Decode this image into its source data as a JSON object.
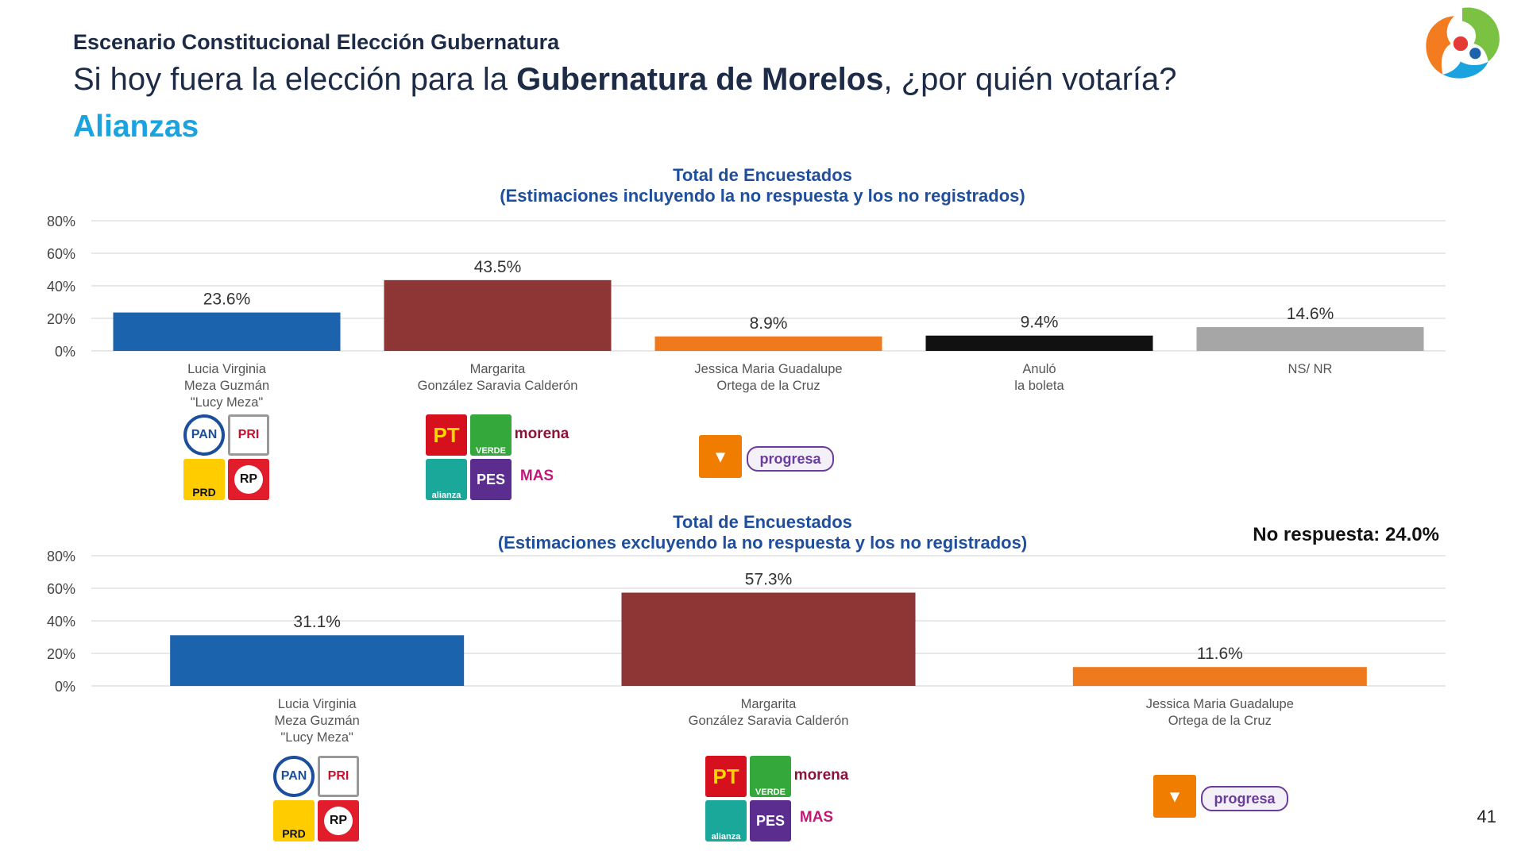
{
  "header": {
    "kicker": "Escenario Constitucional Elección Gubernatura",
    "question_before": "Si hoy fuera la elección para la ",
    "question_bold": "Gubernatura de Morelos",
    "question_after": ", ¿por quién votaría?",
    "section": "Alianzas"
  },
  "page_number": "41",
  "no_response_note": "No respuesta: 24.0%",
  "logos": {
    "pan": "PAN",
    "pri": "PRI",
    "prd": "PRD",
    "rp": "RP",
    "pt": "PT",
    "verde": "VERDE",
    "morena": "morena",
    "alianza": "alianza",
    "pes": "PES",
    "mas": "MAS",
    "progresa": "progresa"
  },
  "chart_data": [
    {
      "type": "bar",
      "title": "Total de Encuestados",
      "subtitle": "(Estimaciones incluyendo la no respuesta y los no registrados)",
      "categories": [
        [
          "Lucia Virginia",
          "Meza Guzmán",
          "\"Lucy Meza\""
        ],
        [
          "Margarita",
          "González Saravia Calderón"
        ],
        [
          "Jessica Maria Guadalupe",
          "Ortega de la Cruz"
        ],
        [
          "Anuló",
          "la boleta"
        ],
        [
          "NS/ NR"
        ]
      ],
      "values": [
        23.6,
        43.5,
        8.9,
        9.4,
        14.6
      ],
      "data_labels": [
        "23.6%",
        "43.5%",
        "8.9%",
        "9.4%",
        "14.6%"
      ],
      "colors": [
        "#1b63ad",
        "#8e3535",
        "#ef7a1d",
        "#111111",
        "#a6a6a6"
      ],
      "y_ticks": [
        "0%",
        "20%",
        "40%",
        "60%",
        "80%"
      ],
      "ylim": [
        0,
        80
      ],
      "grid": true
    },
    {
      "type": "bar",
      "title": "Total de Encuestados",
      "subtitle": "(Estimaciones excluyendo la no respuesta y los no registrados)",
      "categories": [
        [
          "Lucia Virginia",
          "Meza Guzmán",
          "\"Lucy Meza\""
        ],
        [
          "Margarita",
          "González Saravia Calderón"
        ],
        [
          "Jessica Maria Guadalupe",
          "Ortega de la Cruz"
        ]
      ],
      "values": [
        31.1,
        57.3,
        11.6
      ],
      "data_labels": [
        "31.1%",
        "57.3%",
        "11.6%"
      ],
      "colors": [
        "#1b63ad",
        "#8e3535",
        "#ef7a1d"
      ],
      "y_ticks": [
        "0%",
        "20%",
        "40%",
        "60%",
        "80%"
      ],
      "ylim": [
        0,
        80
      ],
      "grid": true
    }
  ]
}
